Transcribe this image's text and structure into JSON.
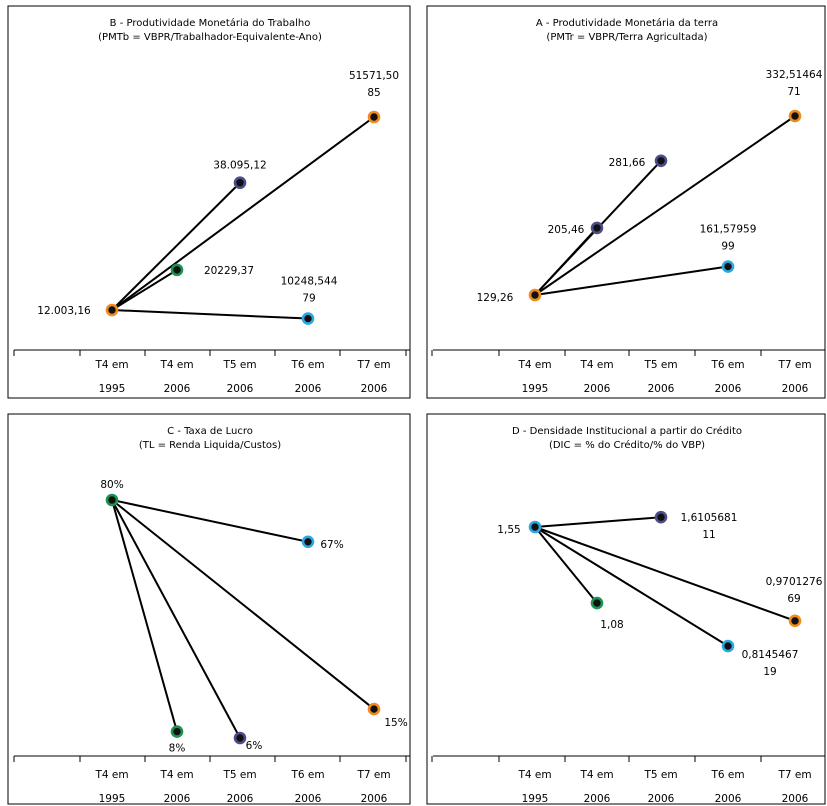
{
  "colors": {
    "orange": "#f08a1c",
    "navy": "#4d4d8c",
    "green": "#1a9450",
    "cyan": "#2aa8df",
    "dot_fill": "#111111"
  },
  "x_axis": {
    "top_labels": [
      "T4 em",
      "T4 em",
      "T5 em",
      "T6 em",
      "T7 em"
    ],
    "bottom_labels": [
      "1995",
      "2006",
      "2006",
      "2006",
      "2006"
    ]
  },
  "chart_data": [
    {
      "id": "B",
      "type": "scatter",
      "title": "B - Produtividade Monetária do Trabalho",
      "subtitle": "(PMTb = VBPR/Trabalhador-Equivalente-Ano)",
      "categories": [
        "T4 em 1995",
        "T4 em 2006",
        "T5 em 2006",
        "T6 em 2006",
        "T7 em 2006"
      ],
      "ylim": [
        0,
        56000
      ],
      "origin": {
        "category": 0,
        "value": 12003.16,
        "label": "12.003,16",
        "color": "orange"
      },
      "points": [
        {
          "category": 1,
          "value": 20229.37,
          "label": [
            "20229,37"
          ],
          "color": "green"
        },
        {
          "category": 2,
          "value": 38095.12,
          "label": [
            "38.095,12"
          ],
          "color": "navy"
        },
        {
          "category": 3,
          "value": 10248.54479,
          "label": [
            "10248,544",
            "79"
          ],
          "color": "cyan"
        },
        {
          "category": 4,
          "value": 51571.5085,
          "label": [
            "51571,50",
            "85"
          ],
          "color": "orange"
        }
      ]
    },
    {
      "id": "A",
      "type": "scatter",
      "title": "A - Produtividade Monetária da terra",
      "subtitle": "(PMTr = VBPR/Terra Agricultada)",
      "categories": [
        "T4 em 1995",
        "T4 em 2006",
        "T5 em 2006",
        "T6 em 2006",
        "T7 em 2006"
      ],
      "ylim": [
        80,
        360
      ],
      "origin": {
        "category": 0,
        "value": 129.26,
        "label": "129,26",
        "color": "orange"
      },
      "points": [
        {
          "category": 1,
          "value": 205.46,
          "label": [
            "205,46"
          ],
          "color": "navy"
        },
        {
          "category": 2,
          "value": 281.66,
          "label": [
            "281,66"
          ],
          "color": "navy"
        },
        {
          "category": 3,
          "value": 161.5795999,
          "label": [
            "161,57959",
            "99"
          ],
          "color": "cyan"
        },
        {
          "category": 4,
          "value": 332.5146471,
          "label": [
            "332,51464",
            "71"
          ],
          "color": "orange"
        }
      ]
    },
    {
      "id": "C",
      "type": "scatter",
      "title": "C - Taxa de Lucro",
      "subtitle": "(TL = Renda Liquida/Custos)",
      "categories": [
        "T4 em 1995",
        "T4 em 2006",
        "T5 em 2006",
        "T6 em 2006",
        "T7 em 2006"
      ],
      "ylim": [
        0,
        100
      ],
      "origin": {
        "category": 0,
        "value": 80,
        "label": "80%",
        "color": "green"
      },
      "points": [
        {
          "category": 1,
          "value": 8,
          "label": [
            "8%"
          ],
          "color": "green"
        },
        {
          "category": 2,
          "value": 6,
          "label": [
            "6%"
          ],
          "color": "navy"
        },
        {
          "category": 3,
          "value": 67,
          "label": [
            "67%"
          ],
          "color": "cyan"
        },
        {
          "category": 4,
          "value": 15,
          "label": [
            "15%"
          ],
          "color": "orange"
        }
      ]
    },
    {
      "id": "D",
      "type": "scatter",
      "title": "D - Densidade Institucional a partir do Crédito",
      "subtitle": "(DIC = % do Crédito/% do VBP)",
      "categories": [
        "T4 em 1995",
        "T4 em 2006",
        "T5 em 2006",
        "T6 em 2006",
        "T7 em 2006"
      ],
      "ylim": [
        0.3,
        1.9
      ],
      "origin": {
        "category": 0,
        "value": 1.55,
        "label": "1,55",
        "color": "cyan"
      },
      "points": [
        {
          "category": 1,
          "value": 1.08,
          "label": [
            "1,08"
          ],
          "color": "green"
        },
        {
          "category": 2,
          "value": 1.610568111,
          "label": [
            "1,6105681",
            "11"
          ],
          "color": "navy"
        },
        {
          "category": 3,
          "value": 0.814546719,
          "label": [
            "0,8145467",
            "19"
          ],
          "color": "cyan"
        },
        {
          "category": 4,
          "value": 0.970127669,
          "label": [
            "0,9701276",
            "69"
          ],
          "color": "orange"
        }
      ]
    }
  ]
}
